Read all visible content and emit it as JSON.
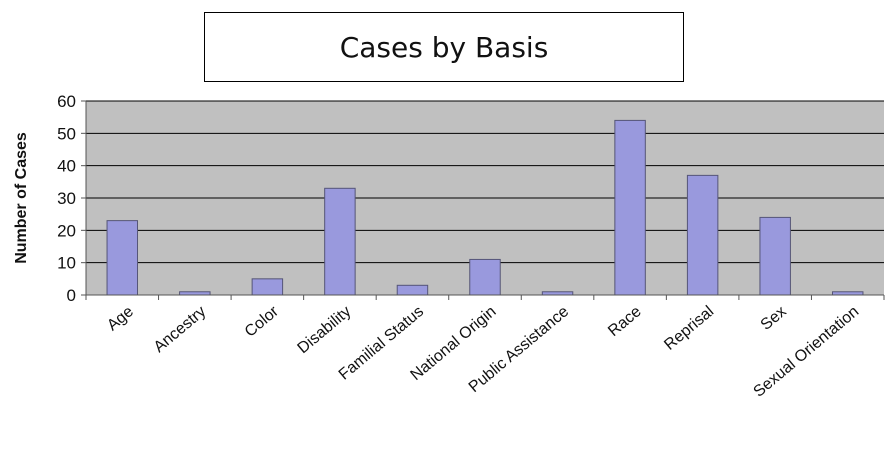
{
  "chart_data": {
    "type": "bar",
    "title": "Cases by Basis",
    "xlabel": "",
    "ylabel": "Number of Cases",
    "categories": [
      "Age",
      "Ancestry",
      "Color",
      "Disability",
      "Familial Status",
      "National Origin",
      "Public Assistance",
      "Race",
      "Reprisal",
      "Sex",
      "Sexual Orientation"
    ],
    "series": [
      {
        "values": [
          23,
          1,
          5,
          33,
          3,
          11,
          1,
          54,
          37,
          24,
          1
        ]
      }
    ],
    "ylim": [
      0,
      60
    ],
    "yticks": [
      0,
      10,
      20,
      30,
      40,
      50,
      60
    ],
    "grid": true,
    "legend": "none",
    "colors": {
      "plot_background": "#c0c0c0",
      "bar_fill": "#9999dd",
      "bar_stroke": "#555577",
      "gridline": "#000000"
    }
  }
}
